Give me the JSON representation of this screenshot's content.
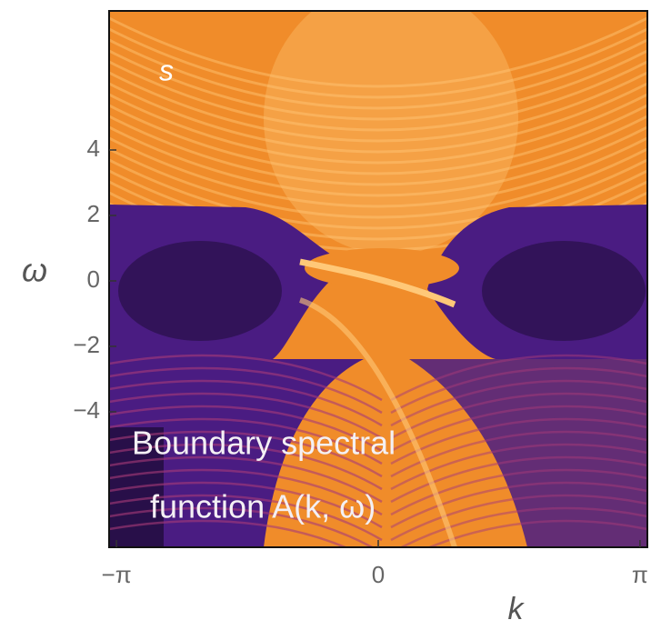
{
  "chart_data": {
    "type": "heatmap",
    "panel_label": "s",
    "annotation": [
      "Boundary spectral",
      "function A(k, ω)"
    ],
    "xlabel": "k",
    "ylabel": "ω",
    "xlim": [
      -3.23,
      3.23
    ],
    "ylim": [
      -8.14,
      8.25
    ],
    "xticks": [
      {
        "value": -3.14159,
        "label": "−π"
      },
      0,
      {
        "value": 3.14159,
        "label": "π"
      }
    ],
    "yticks": [
      4,
      2,
      0,
      {
        "value": -2,
        "label": "−2"
      },
      {
        "value": -4,
        "label": "−4"
      }
    ],
    "colormap": [
      "#1a0a30",
      "#4a1c82",
      "#a83a78",
      "#f08c2a",
      "#ffc878"
    ]
  }
}
